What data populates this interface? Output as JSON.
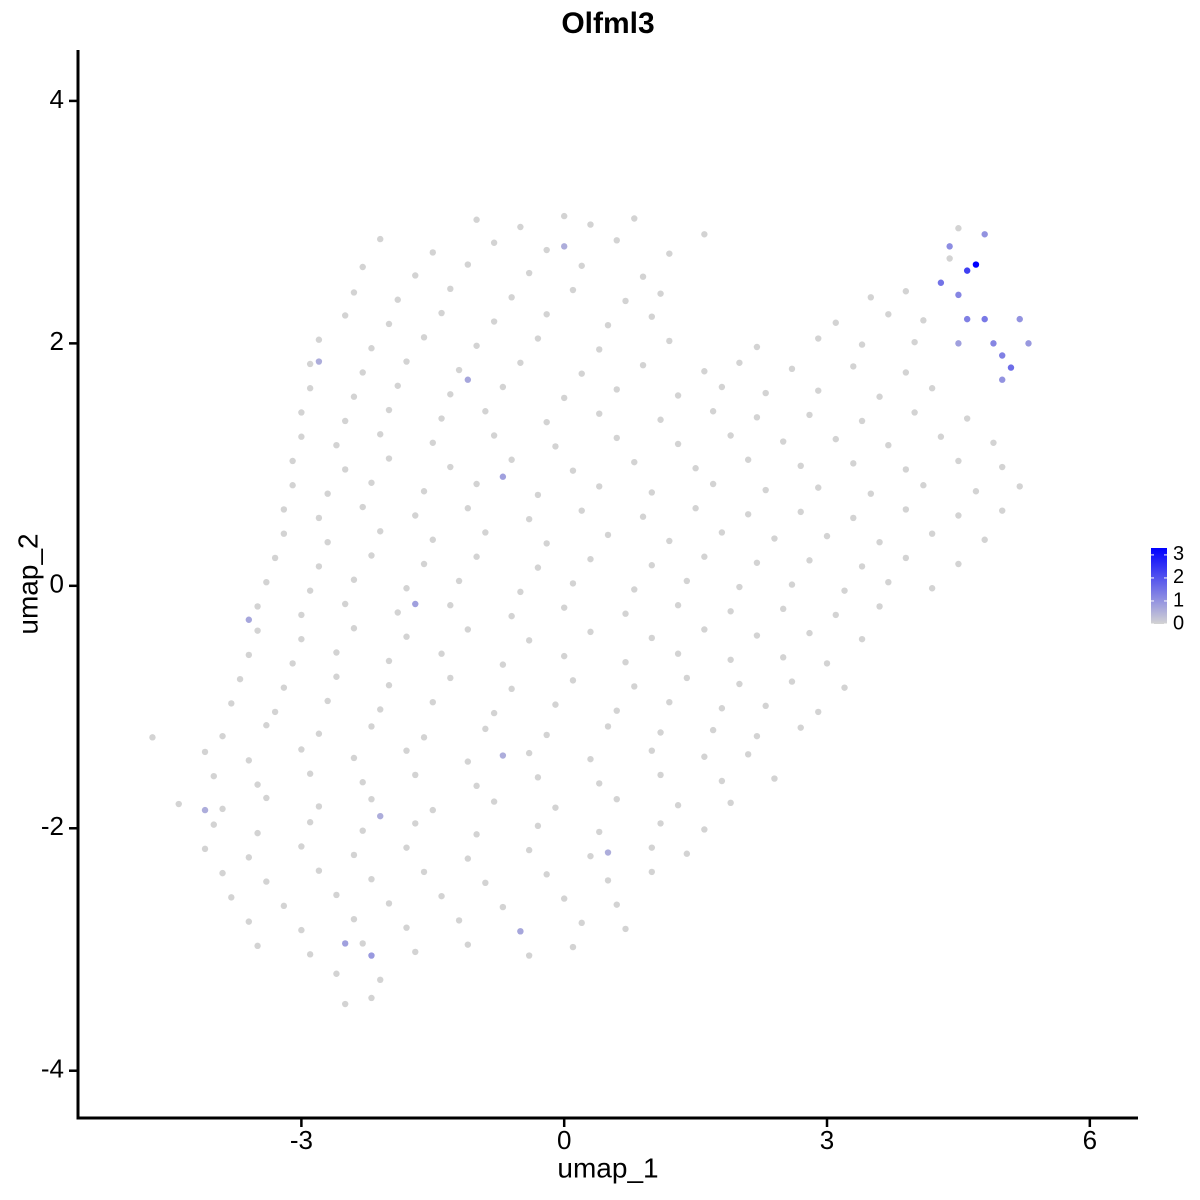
{
  "chart_data": {
    "type": "scatter",
    "title": "Olfml3",
    "x_label": "umap_1",
    "y_label": "umap_2",
    "xlim": [
      -5.55,
      6.55
    ],
    "ylim": [
      -4.39,
      4.42
    ],
    "xticks": [
      -3,
      0,
      3,
      6
    ],
    "yticks": [
      -4,
      -2,
      0,
      2,
      4
    ],
    "color_low": "#d3d3d3",
    "color_high": "#0000ff",
    "colorbar_lim": [
      0,
      3.3
    ],
    "colorbar_ticks": [
      0,
      1,
      2,
      3
    ],
    "x": [
      -1.0,
      -0.5,
      0.0,
      0.3,
      0.8,
      1.6,
      -2.1,
      -1.5,
      -0.8,
      -0.2,
      0.6,
      1.2,
      4.5,
      -2.3,
      -1.7,
      -1.1,
      -0.4,
      0.2,
      0.9,
      4.4,
      -2.4,
      -1.9,
      -1.3,
      -0.6,
      0.1,
      0.7,
      1.1,
      3.5,
      3.9,
      -2.5,
      -2.0,
      -1.4,
      -0.8,
      -0.2,
      0.5,
      1.0,
      3.1,
      3.7,
      4.1,
      -2.8,
      -2.2,
      -1.6,
      -1.0,
      -0.3,
      0.4,
      1.2,
      2.2,
      2.9,
      3.4,
      4.0,
      -2.9,
      -2.3,
      -1.8,
      -1.2,
      -0.5,
      0.2,
      0.9,
      1.6,
      2.0,
      2.6,
      3.3,
      3.9,
      -2.9,
      -2.4,
      -1.9,
      -1.3,
      -0.7,
      0.0,
      0.6,
      1.3,
      1.8,
      2.3,
      2.9,
      3.6,
      4.2,
      -3.0,
      -2.5,
      -2.0,
      -1.4,
      -0.9,
      -0.2,
      0.4,
      1.1,
      1.7,
      2.2,
      2.8,
      3.4,
      4.0,
      4.6,
      -3.0,
      -2.6,
      -2.1,
      -1.5,
      -0.8,
      -0.1,
      0.6,
      1.3,
      1.9,
      2.5,
      3.1,
      3.7,
      4.3,
      4.9,
      -3.1,
      -2.5,
      -2.0,
      -1.3,
      -0.6,
      0.1,
      0.8,
      1.5,
      2.1,
      2.7,
      3.3,
      3.9,
      4.5,
      5.0,
      -3.1,
      -2.7,
      -2.2,
      -1.6,
      -1.0,
      -0.3,
      0.4,
      1.0,
      1.7,
      2.3,
      2.9,
      3.5,
      4.1,
      4.7,
      5.2,
      -3.2,
      -2.8,
      -2.3,
      -1.7,
      -1.1,
      -0.4,
      0.2,
      0.9,
      1.5,
      2.1,
      2.7,
      3.3,
      3.9,
      4.5,
      5.0,
      -3.2,
      -2.7,
      -2.1,
      -1.5,
      -0.9,
      -0.2,
      0.5,
      1.2,
      1.8,
      2.4,
      3.0,
      3.6,
      4.2,
      4.8,
      -3.3,
      -2.8,
      -2.2,
      -1.6,
      -1.0,
      -0.3,
      0.3,
      1.0,
      1.6,
      2.2,
      2.8,
      3.4,
      3.9,
      4.5,
      -3.4,
      -2.9,
      -2.4,
      -1.8,
      -1.2,
      -0.5,
      0.1,
      0.8,
      1.4,
      2.0,
      2.6,
      3.2,
      3.7,
      4.2,
      -3.5,
      -3.0,
      -2.5,
      -1.9,
      -1.3,
      -0.6,
      0.0,
      0.7,
      1.3,
      1.9,
      2.5,
      3.1,
      3.6,
      -3.5,
      -3.0,
      -2.4,
      -1.8,
      -1.1,
      -0.4,
      0.3,
      1.0,
      1.6,
      2.2,
      2.8,
      3.4,
      -3.6,
      -3.1,
      -2.6,
      -2.0,
      -1.4,
      -0.7,
      0.0,
      0.7,
      1.3,
      1.9,
      2.5,
      3.0,
      -3.7,
      -3.2,
      -2.6,
      -2.0,
      -1.3,
      -0.6,
      0.1,
      0.8,
      1.4,
      2.0,
      2.6,
      3.2,
      -3.8,
      -3.3,
      -2.7,
      -2.1,
      -1.5,
      -0.8,
      -0.1,
      0.6,
      1.2,
      1.8,
      2.3,
      2.9,
      -4.7,
      -3.9,
      -3.4,
      -2.8,
      -2.2,
      -1.6,
      -0.9,
      -0.2,
      0.5,
      1.1,
      1.7,
      2.2,
      2.7,
      -4.1,
      -3.6,
      -3.0,
      -2.4,
      -1.8,
      -1.1,
      -0.4,
      0.3,
      1.0,
      1.6,
      2.1,
      -4.0,
      -3.5,
      -2.9,
      -2.3,
      -1.7,
      -1.0,
      -0.3,
      0.4,
      1.1,
      1.8,
      2.4,
      -4.4,
      -3.9,
      -3.4,
      -2.8,
      -2.2,
      -1.5,
      -0.8,
      -0.1,
      0.6,
      1.3,
      1.9,
      -4.0,
      -3.5,
      -2.9,
      -2.3,
      -1.7,
      -1.0,
      -0.3,
      0.4,
      1.1,
      1.6,
      -4.1,
      -3.6,
      -3.0,
      -2.4,
      -1.8,
      -1.1,
      -0.4,
      0.3,
      1.0,
      1.4,
      -3.9,
      -3.4,
      -2.8,
      -2.2,
      -1.6,
      -0.9,
      -0.2,
      0.5,
      1.0,
      -3.8,
      -3.2,
      -2.6,
      -2.0,
      -1.4,
      -0.7,
      0.0,
      0.6,
      -3.6,
      -3.0,
      -2.4,
      -1.8,
      -1.2,
      -0.5,
      0.2,
      0.7,
      -3.5,
      -2.9,
      -2.3,
      -1.7,
      -1.1,
      -0.4,
      0.1,
      -2.6,
      -2.1,
      -2.5,
      -2.2,
      4.3,
      4.6,
      4.7,
      4.5,
      4.8,
      5.0,
      5.1,
      4.9,
      5.2,
      5.3,
      4.6,
      4.4,
      4.8,
      5.0,
      4.5,
      -2.5,
      -2.2,
      -0.5,
      0.5,
      -2.1,
      -0.7,
      -1.1,
      -2.8,
      -3.6,
      -1.7,
      0.0,
      -0.7,
      -4.1
    ],
    "values": [
      3.02,
      2.96,
      3.05,
      2.98,
      3.03,
      2.9,
      2.86,
      2.75,
      2.83,
      2.77,
      2.85,
      2.74,
      2.95,
      2.63,
      2.56,
      2.65,
      2.58,
      2.64,
      2.55,
      2.7,
      2.42,
      2.36,
      2.45,
      2.38,
      2.44,
      2.35,
      2.41,
      2.38,
      2.43,
      2.23,
      2.16,
      2.25,
      2.18,
      2.24,
      2.15,
      2.22,
      2.17,
      2.24,
      2.19,
      2.03,
      1.96,
      2.05,
      1.98,
      2.04,
      1.95,
      2.02,
      1.97,
      2.04,
      1.99,
      2.01,
      1.83,
      1.76,
      1.85,
      1.78,
      1.84,
      1.75,
      1.82,
      1.77,
      1.84,
      1.79,
      1.81,
      1.76,
      1.63,
      1.56,
      1.65,
      1.58,
      1.64,
      1.55,
      1.62,
      1.57,
      1.64,
      1.59,
      1.61,
      1.56,
      1.63,
      1.43,
      1.36,
      1.45,
      1.38,
      1.44,
      1.35,
      1.42,
      1.37,
      1.44,
      1.39,
      1.41,
      1.36,
      1.43,
      1.38,
      1.23,
      1.16,
      1.25,
      1.18,
      1.24,
      1.15,
      1.22,
      1.17,
      1.24,
      1.19,
      1.21,
      1.16,
      1.23,
      1.18,
      1.03,
      0.96,
      1.05,
      0.98,
      1.04,
      0.95,
      1.02,
      0.97,
      1.04,
      0.99,
      1.01,
      0.96,
      1.03,
      0.98,
      0.83,
      0.76,
      0.85,
      0.78,
      0.84,
      0.75,
      0.82,
      0.77,
      0.84,
      0.79,
      0.81,
      0.76,
      0.83,
      0.78,
      0.82,
      0.63,
      0.56,
      0.65,
      0.58,
      0.64,
      0.55,
      0.62,
      0.57,
      0.64,
      0.59,
      0.61,
      0.56,
      0.63,
      0.58,
      0.62,
      0.43,
      0.36,
      0.45,
      0.38,
      0.44,
      0.35,
      0.42,
      0.37,
      0.44,
      0.39,
      0.41,
      0.36,
      0.43,
      0.38,
      0.23,
      0.16,
      0.25,
      0.18,
      0.24,
      0.15,
      0.22,
      0.17,
      0.24,
      0.19,
      0.21,
      0.16,
      0.23,
      0.18,
      0.03,
      -0.04,
      0.05,
      -0.02,
      0.04,
      -0.05,
      0.02,
      -0.03,
      0.04,
      -0.01,
      0.01,
      -0.04,
      0.03,
      -0.02,
      -0.17,
      -0.24,
      -0.15,
      -0.22,
      -0.16,
      -0.25,
      -0.18,
      -0.23,
      -0.16,
      -0.21,
      -0.19,
      -0.24,
      -0.17,
      -0.37,
      -0.44,
      -0.35,
      -0.42,
      -0.36,
      -0.45,
      -0.38,
      -0.43,
      -0.36,
      -0.41,
      -0.39,
      -0.44,
      -0.57,
      -0.64,
      -0.55,
      -0.62,
      -0.56,
      -0.65,
      -0.58,
      -0.63,
      -0.56,
      -0.61,
      -0.59,
      -0.64,
      -0.77,
      -0.84,
      -0.75,
      -0.82,
      -0.76,
      -0.85,
      -0.78,
      -0.83,
      -0.76,
      -0.81,
      -0.79,
      -0.84,
      -0.97,
      -1.04,
      -0.95,
      -1.02,
      -0.96,
      -1.05,
      -0.98,
      -1.03,
      -0.96,
      -1.01,
      -0.99,
      -1.04,
      -1.25,
      -1.24,
      -1.15,
      -1.22,
      -1.16,
      -1.25,
      -1.18,
      -1.23,
      -1.16,
      -1.21,
      -1.19,
      -1.24,
      -1.17,
      -1.37,
      -1.44,
      -1.35,
      -1.42,
      -1.36,
      -1.45,
      -1.38,
      -1.43,
      -1.36,
      -1.41,
      -1.39,
      -1.57,
      -1.64,
      -1.55,
      -1.62,
      -1.56,
      -1.65,
      -1.58,
      -1.63,
      -1.56,
      -1.61,
      -1.59,
      -1.8,
      -1.84,
      -1.75,
      -1.82,
      -1.76,
      -1.85,
      -1.78,
      -1.83,
      -1.76,
      -1.81,
      -1.79,
      -1.97,
      -2.04,
      -1.95,
      -2.02,
      -1.96,
      -2.05,
      -1.98,
      -2.03,
      -1.96,
      -2.01,
      -2.17,
      -2.24,
      -2.15,
      -2.22,
      -2.16,
      -2.25,
      -2.18,
      -2.23,
      -2.16,
      -2.21,
      -2.37,
      -2.44,
      -2.35,
      -2.42,
      -2.36,
      -2.45,
      -2.38,
      -2.43,
      -2.36,
      -2.57,
      -2.64,
      -2.55,
      -2.62,
      -2.56,
      -2.65,
      -2.58,
      -2.63,
      -2.77,
      -2.84,
      -2.75,
      -2.82,
      -2.76,
      -2.85,
      -2.78,
      -2.83,
      -2.97,
      -3.04,
      -2.95,
      -3.02,
      -2.96,
      -3.05,
      -2.98,
      -3.2,
      -3.25,
      -3.45,
      -3.4,
      2.5,
      2.6,
      2.65,
      2.4,
      2.2,
      1.9,
      1.8,
      2.0,
      2.2,
      2.0,
      2.2,
      2.8,
      2.9,
      1.7,
      2.0,
      -2.95,
      -3.05,
      -2.85,
      -2.2,
      -1.9,
      0.9,
      1.7,
      1.85,
      -0.28,
      -0.15,
      2.8,
      -1.4,
      -1.85
    ],
    "expression": [
      0,
      0,
      0,
      0,
      0,
      0,
      0,
      0,
      0,
      0,
      0,
      0,
      0,
      0,
      0,
      0,
      0,
      0,
      0,
      0,
      0,
      0,
      0,
      0,
      0,
      0,
      0,
      0,
      0,
      0,
      0,
      0,
      0,
      0,
      0,
      0,
      0,
      0,
      0,
      0,
      0,
      0,
      0,
      0,
      0,
      0,
      0,
      0,
      0,
      0,
      0,
      0,
      0,
      0,
      0,
      0,
      0,
      0,
      0,
      0,
      0,
      0,
      0,
      0,
      0,
      0,
      0,
      0,
      0,
      0,
      0,
      0,
      0,
      0,
      0,
      0,
      0,
      0,
      0,
      0,
      0,
      0,
      0,
      0,
      0,
      0,
      0,
      0,
      0,
      0,
      0,
      0,
      0,
      0,
      0,
      0,
      0,
      0,
      0,
      0,
      0,
      0,
      0,
      0,
      0,
      0,
      0,
      0,
      0,
      0,
      0,
      0,
      0,
      0,
      0,
      0,
      0,
      0,
      0,
      0,
      0,
      0,
      0,
      0,
      0,
      0,
      0,
      0,
      0,
      0,
      0,
      0,
      0,
      0,
      0,
      0,
      0,
      0,
      0,
      0,
      0,
      0,
      0,
      0,
      0,
      0,
      0,
      0,
      0,
      0,
      0,
      0,
      0,
      0,
      0,
      0,
      0,
      0,
      0,
      0,
      0,
      0,
      0,
      0,
      0,
      0,
      0,
      0,
      0,
      0,
      0,
      0,
      0,
      0,
      0,
      0,
      0,
      0,
      0,
      0,
      0,
      0,
      0,
      0,
      0,
      0,
      0,
      0,
      0,
      0,
      0,
      0,
      0,
      0,
      0,
      0,
      0,
      0,
      0,
      0,
      0,
      0,
      0,
      0,
      0,
      0,
      0,
      0,
      0,
      0,
      0,
      0,
      0,
      0,
      0,
      0,
      0,
      0,
      0,
      0,
      0,
      0,
      0,
      0,
      0,
      0,
      0,
      0,
      0,
      0,
      0,
      0,
      0,
      0,
      0,
      0,
      0,
      0,
      0,
      0,
      0,
      0,
      0,
      0,
      0,
      0,
      0,
      0,
      0,
      0,
      0,
      0,
      0,
      0,
      0,
      0,
      0,
      0,
      0,
      0,
      0,
      0,
      0,
      0,
      0,
      0,
      0,
      0,
      0,
      0,
      0,
      0,
      0,
      0,
      0,
      0,
      0,
      0,
      0,
      0,
      0,
      0,
      0,
      0,
      0,
      0,
      0,
      0,
      0,
      0,
      0,
      0,
      0,
      0,
      0,
      0,
      0,
      0,
      0,
      0,
      0,
      0,
      0,
      0,
      0,
      0,
      0,
      0,
      0,
      0,
      0,
      0,
      0,
      0,
      0,
      0,
      0,
      0,
      0,
      0,
      0,
      0,
      0,
      0,
      0,
      0,
      0,
      0,
      0,
      0,
      0,
      0,
      0,
      0,
      0,
      0,
      0,
      0,
      0,
      0,
      0,
      0,
      0,
      0,
      0,
      0,
      0,
      0,
      0,
      0,
      0,
      0,
      1.5,
      2.3,
      3.3,
      1.2,
      1.4,
      1.3,
      1.6,
      1.2,
      1.0,
      0.9,
      1.3,
      1.1,
      1.0,
      1.0,
      0.8,
      0.8,
      0.9,
      0.7,
      0.6,
      0.6,
      0.8,
      0.7,
      0.6,
      0.7,
      0.8,
      0.6,
      0.6,
      0.6
    ]
  }
}
